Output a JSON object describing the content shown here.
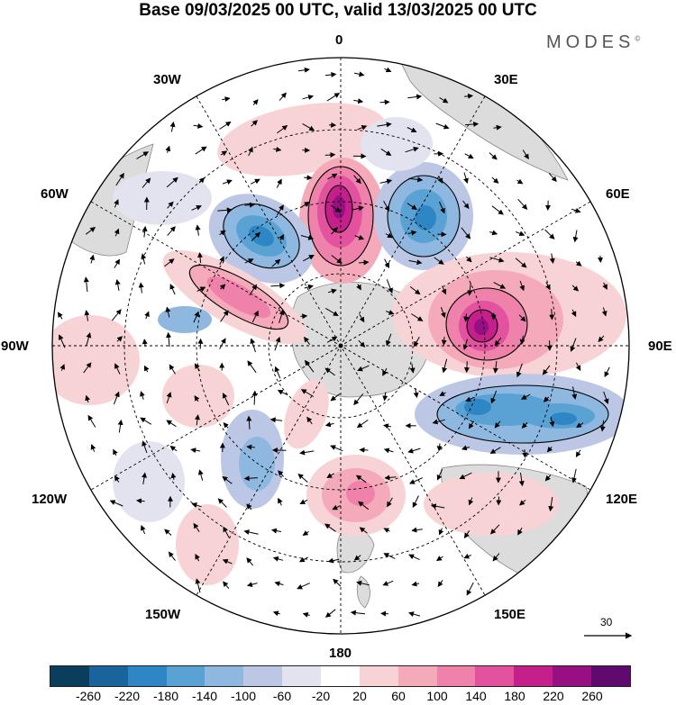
{
  "title": "Base 09/03/2025 00 UTC, valid 13/03/2025 00 UTC",
  "brand": "MODES",
  "brand_mark": "©",
  "longitude_labels": {
    "lon_0": "0",
    "lon_30e": "30E",
    "lon_60e": "60E",
    "lon_90e": "90E",
    "lon_120e": "120E",
    "lon_150e": "150E",
    "lon_180": "180",
    "lon_150w": "150W",
    "lon_120w": "120W",
    "lon_90w": "90W",
    "lon_60w": "60W",
    "lon_30w": "30W"
  },
  "reference_vector": "30",
  "colorbar": {
    "colors": [
      "#0b3d5c",
      "#19649a",
      "#2f86c4",
      "#5aa2d3",
      "#8fb8e0",
      "#bcc7e6",
      "#e3e3f0",
      "#ffffff",
      "#f8d3d6",
      "#f4aab9",
      "#ef82ab",
      "#e3529e",
      "#c51f8c",
      "#961083",
      "#5f0a6f"
    ],
    "ticks": [
      "-260",
      "-220",
      "-180",
      "-140",
      "-100",
      "-60",
      "-20",
      "20",
      "60",
      "100",
      "140",
      "180",
      "220",
      "260"
    ]
  }
}
